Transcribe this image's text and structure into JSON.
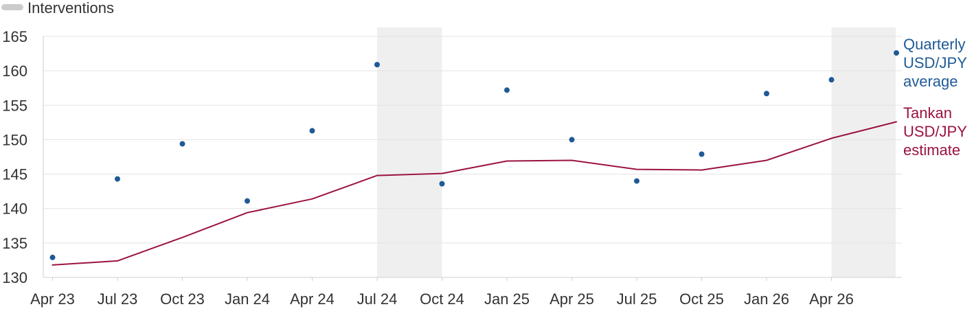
{
  "chart_data": {
    "type": "line",
    "legend": {
      "interventions_label": "Interventions",
      "interventions_color": "#cccccc"
    },
    "x_labels": [
      "Apr 23",
      "Jul 23",
      "Oct 23",
      "Jan 24",
      "Apr 24",
      "Jul 24",
      "Oct 24",
      "Jan 25",
      "Apr 25",
      "Jul 25",
      "Oct 25",
      "Jan 26",
      "Apr 26"
    ],
    "n_periods": 14,
    "ylim": [
      130,
      165
    ],
    "y_ticks": [
      130,
      135,
      140,
      145,
      150,
      155,
      160,
      165
    ],
    "grid": true,
    "intervention_periods": [
      {
        "start": "Jul 24",
        "end": "Oct 24"
      },
      {
        "start": "Apr 26",
        "end": "Jul 26"
      }
    ],
    "series": [
      {
        "name": "Tankan USD/JPY estimate",
        "label_lines": [
          "Tankan",
          "USD/JPY",
          "estimate"
        ],
        "style": "line",
        "color": "#9b1240",
        "values": [
          131.8,
          132.4,
          135.8,
          139.4,
          141.4,
          144.8,
          145.1,
          146.9,
          147.0,
          145.7,
          145.6,
          147.0,
          150.2,
          152.6
        ]
      },
      {
        "name": "Quarterly USD/JPY average",
        "label_lines": [
          "Quarterly",
          "USD/JPY",
          "average"
        ],
        "style": "dots",
        "color": "#1f5a96",
        "values": [
          132.9,
          144.3,
          149.4,
          141.1,
          151.3,
          160.9,
          143.6,
          157.2,
          150.0,
          144.0,
          147.9,
          156.7,
          158.7,
          162.6
        ]
      }
    ]
  }
}
